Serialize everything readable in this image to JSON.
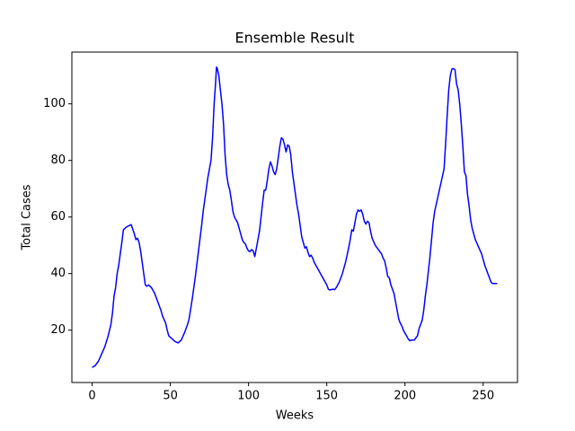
{
  "chart_data": {
    "type": "line",
    "title": "Ensemble Result",
    "xlabel": "Weeks",
    "ylabel": "Total Cases",
    "x": [
      0,
      2,
      4,
      6,
      8,
      10,
      12,
      13,
      14,
      15,
      16,
      17,
      18,
      19,
      20,
      22,
      25,
      27,
      28,
      29,
      30,
      31,
      32,
      33,
      34,
      35,
      36,
      38,
      40,
      42,
      44,
      45,
      47,
      48,
      49,
      51,
      53,
      55,
      57,
      59,
      61,
      62,
      64,
      66,
      68,
      70,
      71,
      73,
      74,
      75,
      76,
      77,
      78,
      79,
      79.5,
      80,
      81,
      82,
      83,
      84,
      85,
      86,
      87,
      88,
      89,
      90,
      91,
      92,
      93,
      94,
      95,
      96,
      97,
      98,
      99,
      100,
      101,
      102,
      103,
      104,
      105,
      106,
      107,
      108,
      109,
      110,
      111,
      112,
      113,
      114,
      115,
      116,
      117,
      118,
      119,
      120,
      121,
      122,
      123,
      124,
      125,
      126,
      127,
      128,
      129,
      130,
      131,
      132,
      133,
      134,
      135,
      136,
      137,
      138,
      139,
      140,
      141,
      142,
      144,
      146,
      148,
      150,
      151,
      152,
      154,
      155,
      156,
      158,
      160,
      162,
      164,
      165,
      166,
      167,
      168,
      169,
      170,
      171,
      172,
      173,
      174,
      175,
      176,
      177,
      178,
      179,
      181,
      183,
      185,
      186,
      187,
      188,
      189,
      190,
      191,
      192,
      193,
      194,
      195,
      196,
      197,
      198,
      199,
      200,
      201,
      202,
      203,
      204,
      206,
      207,
      208,
      209,
      210,
      211,
      212,
      213,
      214,
      215,
      216,
      217,
      218,
      219,
      221,
      223,
      225,
      226,
      227,
      228,
      229,
      230,
      231,
      232,
      233,
      234,
      235,
      236,
      237,
      238,
      239,
      240,
      241,
      242,
      243,
      245,
      247,
      249,
      250,
      251,
      252,
      253,
      254,
      255,
      256,
      259
    ],
    "values": [
      6.8,
      7.5,
      9,
      11.5,
      14,
      17.5,
      22,
      26,
      32,
      35,
      40,
      43,
      47,
      51,
      55.5,
      56.5,
      57.3,
      54,
      52,
      52.5,
      51,
      48,
      44,
      40,
      36,
      35.5,
      36,
      35,
      33,
      30,
      27,
      25,
      22.5,
      20,
      18,
      17,
      16,
      15.5,
      16.5,
      19,
      22,
      24,
      31,
      39,
      48,
      57,
      62,
      70,
      74,
      77,
      80,
      88,
      100,
      108,
      113,
      112.5,
      110,
      105,
      100,
      93,
      82,
      75,
      71.5,
      69.5,
      66,
      62,
      60,
      59,
      58,
      56,
      54,
      52,
      51,
      50.5,
      49,
      48,
      47.8,
      48.5,
      48,
      46,
      49,
      52,
      55,
      60,
      65,
      69.5,
      69.5,
      73,
      77,
      79.5,
      78,
      76,
      75,
      77,
      81,
      85,
      88,
      87.5,
      85.5,
      83,
      85.5,
      85,
      82,
      76,
      72,
      68,
      64,
      61,
      57,
      53,
      51,
      49,
      49.5,
      47.5,
      46,
      46.5,
      45.5,
      44,
      42,
      40,
      38,
      36,
      34.5,
      34.2,
      34.5,
      34.3,
      35,
      37,
      40,
      44,
      49,
      52,
      55.5,
      55,
      58,
      61,
      62.5,
      62,
      62.5,
      61,
      58.5,
      57.5,
      58.5,
      58,
      55,
      52.5,
      50,
      48.5,
      47,
      45.5,
      44.5,
      42,
      39,
      38.5,
      36,
      34.5,
      33,
      30,
      27,
      24,
      22.5,
      21.5,
      20,
      19,
      18,
      17,
      16.3,
      16.5,
      16.5,
      17.3,
      18,
      20.5,
      22,
      23.5,
      27,
      32,
      36,
      41,
      46,
      52,
      58,
      62,
      67,
      72,
      77,
      86,
      96,
      105,
      110,
      112.3,
      112.5,
      112,
      107,
      105,
      100,
      93,
      85,
      76,
      74.5,
      68,
      64,
      59,
      56,
      52,
      49.5,
      47,
      45,
      43,
      41.5,
      40,
      38.5,
      37,
      36.5,
      36.5
    ],
    "color": "#0000ff",
    "xlim": [
      -12.95,
      271.95
    ],
    "xticks": [
      0,
      50,
      100,
      150,
      200,
      250
    ],
    "ylim": [
      1.5,
      118.3
    ],
    "yticks": [
      20,
      40,
      60,
      80,
      100
    ],
    "grid": false
  }
}
